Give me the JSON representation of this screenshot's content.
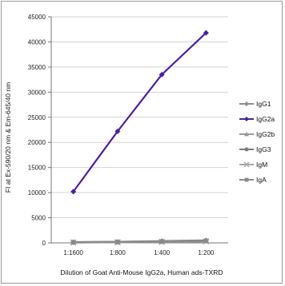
{
  "chart_data": {
    "type": "line",
    "title": "",
    "xlabel": "Dilution of Goat Anti-Mouse IgG2a, Human ads-TXRD",
    "ylabel": "FI at Ex-590/20 nm & Em-645/40 nm",
    "categories": [
      "1:1600",
      "1:800",
      "1:400",
      "1:200"
    ],
    "ylim": [
      0,
      45000
    ],
    "yticks": [
      0,
      5000,
      10000,
      15000,
      20000,
      25000,
      30000,
      35000,
      40000,
      45000
    ],
    "grid": "horizontal",
    "legend_position": "right",
    "series": [
      {
        "name": "IgG1",
        "values": [
          150,
          200,
          350,
          500
        ],
        "color": "#8c8c8c",
        "marker": "diamond"
      },
      {
        "name": "IgG2a",
        "values": [
          10200,
          22200,
          33500,
          41800
        ],
        "color": "#4b1fa0",
        "marker": "diamond"
      },
      {
        "name": "IgG2b",
        "values": [
          100,
          150,
          250,
          400
        ],
        "color": "#9a9a9a",
        "marker": "triangle"
      },
      {
        "name": "IgG3",
        "values": [
          120,
          180,
          300,
          450
        ],
        "color": "#7a7a7a",
        "marker": "circle"
      },
      {
        "name": "IgM",
        "values": [
          80,
          120,
          200,
          300
        ],
        "color": "#a8a8a8",
        "marker": "x"
      },
      {
        "name": "IgA",
        "values": [
          100,
          160,
          260,
          380
        ],
        "color": "#8a8a8a",
        "marker": "square"
      }
    ]
  }
}
